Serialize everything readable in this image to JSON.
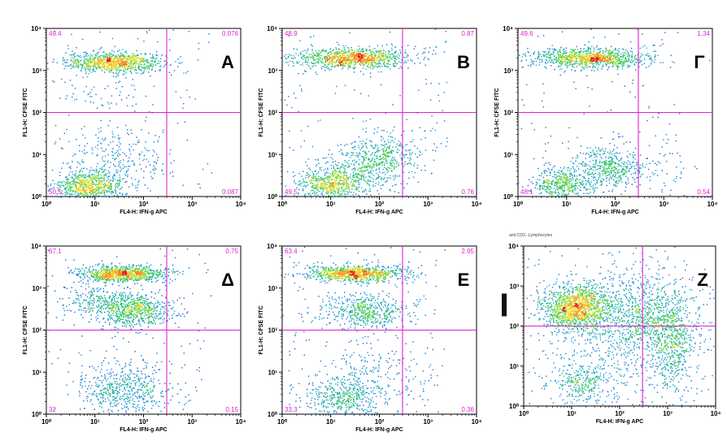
{
  "chart_data": [
    {
      "type": "scatter",
      "panel_label": "A",
      "xlabel": "FL4-H: IFN-g APC",
      "ylabel": "FL1-H: CFSE FITC",
      "x_scale": "log",
      "y_scale": "log",
      "xlim": [
        1,
        10000
      ],
      "ylim": [
        1,
        10000
      ],
      "x_ticks": [
        "10⁰",
        "10¹",
        "10²",
        "10³",
        "10⁴"
      ],
      "y_ticks": [
        "10⁰",
        "10¹",
        "10²",
        "10³",
        "10⁴"
      ],
      "quadrant_gate": {
        "x": 300,
        "y": 100
      },
      "quadrant_values": {
        "top_left": "49.4",
        "top_right": "0.076",
        "bottom_left": "50.5",
        "bottom_right": "0.087"
      },
      "populations": [
        {
          "x": 25,
          "y": 1600,
          "sx": 0.5,
          "sy": 0.12,
          "n": 900
        },
        {
          "x": 8,
          "y": 1.8,
          "sx": 0.35,
          "sy": 0.18,
          "n": 700
        },
        {
          "x": 30,
          "y": 8,
          "sx": 0.55,
          "sy": 0.45,
          "n": 260
        },
        {
          "x": 15,
          "y": 250,
          "sx": 0.45,
          "sy": 0.2,
          "n": 40
        }
      ]
    },
    {
      "type": "scatter",
      "panel_label": "B",
      "xlabel": "FL4-H: IFN-g APC",
      "ylabel": "FL1-H: CFSE FITC",
      "x_scale": "log",
      "y_scale": "log",
      "xlim": [
        1,
        10000
      ],
      "ylim": [
        1,
        10000
      ],
      "x_ticks": [
        "10⁰",
        "10¹",
        "10²",
        "10³",
        "10⁴"
      ],
      "y_ticks": [
        "10⁰",
        "10¹",
        "10²",
        "10³",
        "10⁴"
      ],
      "quadrant_gate": {
        "x": 300,
        "y": 100
      },
      "quadrant_values": {
        "top_left": "48.9",
        "top_right": "0.87",
        "bottom_left": "49.5",
        "bottom_right": "0.76"
      },
      "populations": [
        {
          "x": 25,
          "y": 2000,
          "sx": 0.6,
          "sy": 0.12,
          "n": 1000
        },
        {
          "x": 10,
          "y": 2,
          "sx": 0.35,
          "sy": 0.2,
          "n": 600
        },
        {
          "x": 60,
          "y": 6,
          "sx": 0.45,
          "sy": 0.3,
          "n": 450
        },
        {
          "x": 150,
          "y": 12,
          "sx": 0.3,
          "sy": 0.2,
          "n": 150
        }
      ]
    },
    {
      "type": "scatter",
      "panel_label": "Γ",
      "xlabel": "FL4-H: IFN-g APC",
      "ylabel": "FL1-H: CFSE FITC",
      "x_scale": "log",
      "y_scale": "log",
      "xlim": [
        1,
        10000
      ],
      "ylim": [
        1,
        10000
      ],
      "x_ticks": [
        "10⁰",
        "10¹",
        "10²",
        "10³",
        "10⁴"
      ],
      "y_ticks": [
        "10⁰",
        "10¹",
        "10²",
        "10³",
        "10⁴"
      ],
      "quadrant_gate": {
        "x": 300,
        "y": 100
      },
      "quadrant_values": {
        "top_left": "49.6",
        "top_right": "1.34",
        "bottom_left": "48.1",
        "bottom_right": "0.54"
      },
      "populations": [
        {
          "x": 30,
          "y": 2000,
          "sx": 0.6,
          "sy": 0.12,
          "n": 1000
        },
        {
          "x": 8,
          "y": 2,
          "sx": 0.3,
          "sy": 0.2,
          "n": 450
        },
        {
          "x": 70,
          "y": 5,
          "sx": 0.3,
          "sy": 0.25,
          "n": 400
        },
        {
          "x": 400,
          "y": 5,
          "sx": 0.5,
          "sy": 0.3,
          "n": 80
        }
      ]
    },
    {
      "type": "scatter",
      "panel_label": "Δ",
      "xlabel": "FL4-H: IFN-g APC",
      "ylabel": "FL1-H: CFSE FITC",
      "x_scale": "log",
      "y_scale": "log",
      "xlim": [
        1,
        10000
      ],
      "ylim": [
        1,
        10000
      ],
      "x_ticks": [
        "10⁰",
        "10¹",
        "10²",
        "10³",
        "10⁴"
      ],
      "y_ticks": [
        "10⁰",
        "10¹",
        "10²",
        "10³",
        "10⁴"
      ],
      "quadrant_gate": {
        "x": 300,
        "y": 100
      },
      "quadrant_values": {
        "top_left": "67.1",
        "top_right": "0.75",
        "bottom_left": "32",
        "bottom_right": "0.15"
      },
      "populations": [
        {
          "x": 35,
          "y": 2200,
          "sx": 0.45,
          "sy": 0.1,
          "n": 900
        },
        {
          "x": 60,
          "y": 300,
          "sx": 0.4,
          "sy": 0.2,
          "n": 650
        },
        {
          "x": 15,
          "y": 500,
          "sx": 0.45,
          "sy": 0.2,
          "n": 250
        },
        {
          "x": 40,
          "y": 4,
          "sx": 0.45,
          "sy": 0.3,
          "n": 550
        }
      ]
    },
    {
      "type": "scatter",
      "panel_label": "E",
      "xlabel": "FL4-H: IFN-g APC",
      "ylabel": "FL1-H: CFSE FITC",
      "x_scale": "log",
      "y_scale": "log",
      "xlim": [
        1,
        10000
      ],
      "ylim": [
        1,
        10000
      ],
      "x_ticks": [
        "10⁰",
        "10¹",
        "10²",
        "10³",
        "10⁴"
      ],
      "y_ticks": [
        "10⁰",
        "10¹",
        "10²",
        "10³",
        "10⁴"
      ],
      "quadrant_gate": {
        "x": 300,
        "y": 100
      },
      "quadrant_values": {
        "top_left": "63.4",
        "top_right": "2.95",
        "bottom_left": "33.3",
        "bottom_right": "0.36"
      },
      "populations": [
        {
          "x": 30,
          "y": 2300,
          "sx": 0.5,
          "sy": 0.1,
          "n": 900
        },
        {
          "x": 50,
          "y": 280,
          "sx": 0.45,
          "sy": 0.2,
          "n": 500
        },
        {
          "x": 20,
          "y": 2.5,
          "sx": 0.4,
          "sy": 0.25,
          "n": 450
        },
        {
          "x": 80,
          "y": 8,
          "sx": 0.55,
          "sy": 0.4,
          "n": 200
        }
      ]
    },
    {
      "type": "scatter",
      "panel_label": "Z",
      "gate_name": "anti-CD3...Lymphocytes",
      "xlabel": "FL4-H: IFN-g APC",
      "ylabel": "",
      "x_scale": "log",
      "y_scale": "log",
      "xlim": [
        1,
        10000
      ],
      "ylim": [
        1,
        10000
      ],
      "x_ticks": [
        "10⁰",
        "10¹",
        "10²",
        "10³",
        "10⁴"
      ],
      "y_ticks": [
        "10⁰",
        "10¹",
        "10²",
        "10³",
        "10⁴"
      ],
      "quadrant_gate": {
        "x": 300,
        "y": 100
      },
      "quadrant_values": {
        "top_left": "",
        "top_right": "",
        "bottom_left": "",
        "bottom_right": ""
      },
      "populations": [
        {
          "x": 12,
          "y": 300,
          "sx": 0.35,
          "sy": 0.3,
          "n": 1300
        },
        {
          "x": 300,
          "y": 200,
          "sx": 0.6,
          "sy": 0.55,
          "n": 900
        },
        {
          "x": 1200,
          "y": 40,
          "sx": 0.25,
          "sy": 0.6,
          "n": 500
        },
        {
          "x": 15,
          "y": 4,
          "sx": 0.3,
          "sy": 0.25,
          "n": 250
        },
        {
          "x": 120,
          "y": 20,
          "sx": 0.8,
          "sy": 0.8,
          "n": 400
        }
      ]
    }
  ]
}
